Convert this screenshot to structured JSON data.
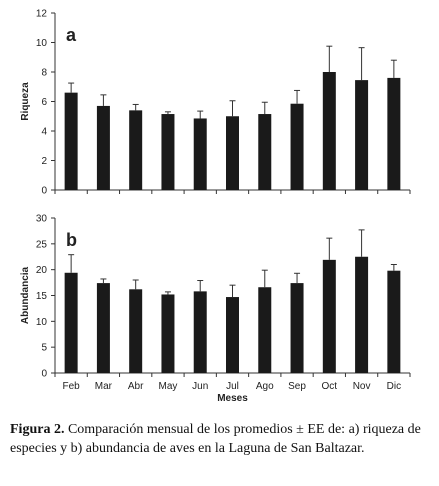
{
  "caption": {
    "label": "Figura 2.",
    "text": "Comparación mensual de los promedios ± EE de: a) riqueza de especies y b) abundancia de aves en la Laguna de San Baltazar."
  },
  "colors": {
    "bar": "#1a1a1a",
    "axis": "#333333",
    "background": "#ffffff"
  },
  "chart_data": [
    {
      "type": "bar",
      "panel_label": "a",
      "ylabel": "Riqueza",
      "xlabel": "",
      "ylim": [
        0,
        12
      ],
      "yticks": [
        0,
        2,
        4,
        6,
        8,
        10,
        12
      ],
      "grid": false,
      "categories": [
        "Feb",
        "Mar",
        "Abr",
        "May",
        "Jun",
        "Jul",
        "Ago",
        "Sep",
        "Oct",
        "Nov",
        "Dic"
      ],
      "values": [
        6.6,
        5.7,
        5.4,
        5.15,
        4.85,
        5.0,
        5.15,
        5.85,
        8.0,
        7.45,
        7.6
      ],
      "errors": [
        0.65,
        0.75,
        0.4,
        0.15,
        0.5,
        1.05,
        0.8,
        0.9,
        1.75,
        2.2,
        1.2
      ]
    },
    {
      "type": "bar",
      "panel_label": "b",
      "ylabel": "Abundancia",
      "xlabel": "Meses",
      "ylim": [
        0,
        30
      ],
      "yticks": [
        0,
        5,
        10,
        15,
        20,
        25,
        30
      ],
      "grid": false,
      "categories": [
        "Feb",
        "Mar",
        "Abr",
        "May",
        "Jun",
        "Jul",
        "Ago",
        "Sep",
        "Oct",
        "Nov",
        "Dic"
      ],
      "values": [
        19.4,
        17.4,
        16.2,
        15.2,
        15.8,
        14.7,
        16.6,
        17.4,
        21.9,
        22.5,
        19.8
      ],
      "errors": [
        3.5,
        0.8,
        1.8,
        0.5,
        2.1,
        2.3,
        3.3,
        1.9,
        4.2,
        5.2,
        1.2
      ]
    }
  ]
}
